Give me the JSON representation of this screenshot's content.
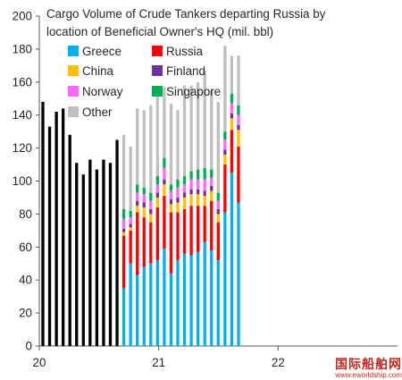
{
  "chart_data": {
    "type": "bar",
    "stacked": true,
    "title_lines": [
      "Cargo Volume of Crude Tankers departing Russia by",
      "location of Beneficial Owner's HQ (mil. bbl)"
    ],
    "xlabel": "",
    "ylabel": "",
    "ylim": [
      0,
      200
    ],
    "yticks": [
      0,
      20,
      40,
      60,
      80,
      100,
      120,
      140,
      160,
      180,
      200
    ],
    "xtick_labels": [
      {
        "label": "20",
        "period": 0
      },
      {
        "label": "21",
        "period": 24
      },
      {
        "label": "22",
        "period": 48
      }
    ],
    "total_periods": 72,
    "grid": false,
    "legend_position": "top-left",
    "pre_breakdown_color": "#000000",
    "pre_breakdown_totals": [
      148,
      133,
      142,
      144,
      128,
      111,
      104,
      113,
      107,
      113,
      111,
      125
    ],
    "series": [
      {
        "name": "Greece",
        "color": "#00b0f0",
        "values": [
          35,
          50,
          43,
          48,
          50,
          52,
          59,
          44,
          52,
          56,
          55,
          57,
          63,
          58,
          52,
          81,
          105,
          87
        ]
      },
      {
        "name": "Russia",
        "color": "#ff0000",
        "values": [
          32,
          20,
          38,
          30,
          25,
          32,
          32,
          37,
          29,
          27,
          30,
          28,
          22,
          30,
          23,
          29,
          26,
          34
        ]
      },
      {
        "name": "China",
        "color": "#ffc000",
        "values": [
          2,
          2,
          4,
          6,
          5,
          6,
          7,
          5,
          6,
          7,
          7,
          7,
          6,
          6,
          5,
          6,
          7,
          10
        ]
      },
      {
        "name": "Finland",
        "color": "#7030a0",
        "values": [
          2,
          2,
          3,
          3,
          3,
          3,
          3,
          3,
          3,
          3,
          3,
          3,
          3,
          3,
          3,
          3,
          3,
          3
        ]
      },
      {
        "name": "Norway",
        "color": "#ff66ff",
        "values": [
          6,
          4,
          5,
          5,
          5,
          5,
          7,
          5,
          6,
          5,
          6,
          6,
          7,
          5,
          5,
          6,
          6,
          6
        ]
      },
      {
        "name": "Singapore",
        "color": "#00b050",
        "values": [
          6,
          4,
          5,
          4,
          5,
          5,
          6,
          4,
          5,
          5,
          5,
          6,
          7,
          5,
          5,
          5,
          6,
          6
        ]
      },
      {
        "name": "Other",
        "color": "#bfbfbf",
        "values": [
          45,
          39,
          46,
          47,
          53,
          50,
          43,
          49,
          42,
          55,
          52,
          53,
          59,
          48,
          55,
          52,
          23,
          30
        ]
      }
    ]
  }
}
